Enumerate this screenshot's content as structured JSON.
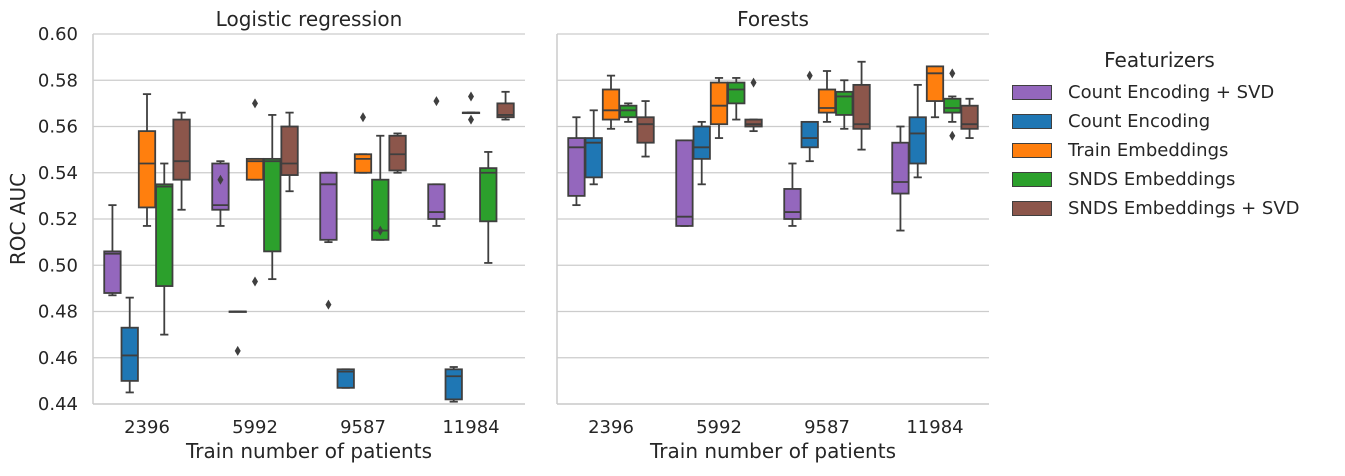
{
  "chart_data": {
    "type": "box",
    "ylabel": "ROC AUC",
    "ylim": [
      0.44,
      0.6
    ],
    "yticks": [
      "0.44",
      "0.46",
      "0.48",
      "0.50",
      "0.52",
      "0.54",
      "0.56",
      "0.58",
      "0.60"
    ],
    "grid": true,
    "xlabel": "Train number of patients",
    "categories": [
      "2396",
      "5992",
      "9587",
      "11984"
    ],
    "legend": {
      "title": "Featurizers",
      "placement": "right",
      "items": [
        {
          "name": "Count Encoding + SVD",
          "color": "#9467bd"
        },
        {
          "name": "Count Encoding",
          "color": "#1f77b4"
        },
        {
          "name": "Train Embeddings",
          "color": "#ff7f0e"
        },
        {
          "name": "SNDS Embeddings",
          "color": "#2ca02c"
        },
        {
          "name": "SNDS Embeddings + SVD",
          "color": "#8c564b"
        }
      ]
    },
    "panels": [
      {
        "title": "Logistic regression",
        "series": [
          {
            "name": "Count Encoding + SVD",
            "boxes": [
              {
                "min": 0.487,
                "q1": 0.488,
                "median": 0.505,
                "q3": 0.506,
                "max": 0.526,
                "outliers": []
              },
              {
                "min": 0.517,
                "q1": 0.524,
                "median": 0.526,
                "q3": 0.544,
                "max": 0.545,
                "outliers": [
                  0.537
                ]
              },
              {
                "min": 0.51,
                "q1": 0.511,
                "median": 0.535,
                "q3": 0.54,
                "max": 0.54,
                "outliers": [
                  0.483
                ]
              },
              {
                "min": 0.517,
                "q1": 0.52,
                "median": 0.523,
                "q3": 0.535,
                "max": 0.535,
                "outliers": [
                  0.571
                ]
              }
            ]
          },
          {
            "name": "Count Encoding",
            "boxes": [
              {
                "min": 0.445,
                "q1": 0.45,
                "median": 0.461,
                "q3": 0.473,
                "max": 0.486,
                "outliers": []
              },
              {
                "min": 0.48,
                "q1": 0.48,
                "median": 0.48,
                "q3": 0.48,
                "max": 0.48,
                "outliers": [
                  0.463
                ]
              },
              {
                "min": 0.447,
                "q1": 0.447,
                "median": 0.454,
                "q3": 0.455,
                "max": 0.455,
                "outliers": []
              },
              {
                "min": 0.441,
                "q1": 0.442,
                "median": 0.452,
                "q3": 0.455,
                "max": 0.456,
                "outliers": []
              }
            ]
          },
          {
            "name": "Train Embeddings",
            "boxes": [
              {
                "min": 0.517,
                "q1": 0.525,
                "median": 0.544,
                "q3": 0.558,
                "max": 0.574,
                "outliers": []
              },
              {
                "min": 0.537,
                "q1": 0.537,
                "median": 0.545,
                "q3": 0.546,
                "max": 0.546,
                "outliers": [
                  0.57,
                  0.493
                ]
              },
              {
                "min": 0.54,
                "q1": 0.54,
                "median": 0.546,
                "q3": 0.548,
                "max": 0.548,
                "outliers": [
                  0.564
                ]
              },
              {
                "min": 0.566,
                "q1": 0.566,
                "median": 0.566,
                "q3": 0.566,
                "max": 0.566,
                "outliers": [
                  0.573,
                  0.563
                ]
              }
            ]
          },
          {
            "name": "SNDS Embeddings",
            "boxes": [
              {
                "min": 0.47,
                "q1": 0.491,
                "median": 0.534,
                "q3": 0.535,
                "max": 0.544,
                "outliers": []
              },
              {
                "min": 0.494,
                "q1": 0.506,
                "median": 0.545,
                "q3": 0.546,
                "max": 0.565,
                "outliers": []
              },
              {
                "min": 0.511,
                "q1": 0.511,
                "median": 0.515,
                "q3": 0.537,
                "max": 0.556,
                "outliers": [
                  0.515
                ]
              },
              {
                "min": 0.501,
                "q1": 0.519,
                "median": 0.54,
                "q3": 0.542,
                "max": 0.549,
                "outliers": []
              }
            ]
          },
          {
            "name": "SNDS Embeddings + SVD",
            "boxes": [
              {
                "min": 0.524,
                "q1": 0.537,
                "median": 0.545,
                "q3": 0.563,
                "max": 0.566,
                "outliers": []
              },
              {
                "min": 0.532,
                "q1": 0.539,
                "median": 0.544,
                "q3": 0.56,
                "max": 0.566,
                "outliers": []
              },
              {
                "min": 0.54,
                "q1": 0.541,
                "median": 0.548,
                "q3": 0.556,
                "max": 0.557,
                "outliers": []
              },
              {
                "min": 0.563,
                "q1": 0.564,
                "median": 0.565,
                "q3": 0.57,
                "max": 0.575,
                "outliers": []
              }
            ]
          }
        ]
      },
      {
        "title": "Forests",
        "series": [
          {
            "name": "Count Encoding + SVD",
            "boxes": [
              {
                "min": 0.526,
                "q1": 0.53,
                "median": 0.551,
                "q3": 0.555,
                "max": 0.564,
                "outliers": []
              },
              {
                "min": 0.517,
                "q1": 0.517,
                "median": 0.521,
                "q3": 0.554,
                "max": 0.554,
                "outliers": []
              },
              {
                "min": 0.517,
                "q1": 0.52,
                "median": 0.523,
                "q3": 0.533,
                "max": 0.544,
                "outliers": []
              },
              {
                "min": 0.515,
                "q1": 0.531,
                "median": 0.536,
                "q3": 0.553,
                "max": 0.56,
                "outliers": []
              }
            ]
          },
          {
            "name": "Count Encoding",
            "boxes": [
              {
                "min": 0.535,
                "q1": 0.538,
                "median": 0.553,
                "q3": 0.555,
                "max": 0.567,
                "outliers": []
              },
              {
                "min": 0.535,
                "q1": 0.546,
                "median": 0.551,
                "q3": 0.56,
                "max": 0.562,
                "outliers": []
              },
              {
                "min": 0.545,
                "q1": 0.551,
                "median": 0.555,
                "q3": 0.562,
                "max": 0.562,
                "outliers": [
                  0.582
                ]
              },
              {
                "min": 0.538,
                "q1": 0.544,
                "median": 0.557,
                "q3": 0.564,
                "max": 0.578,
                "outliers": []
              }
            ]
          },
          {
            "name": "Train Embeddings",
            "boxes": [
              {
                "min": 0.559,
                "q1": 0.563,
                "median": 0.567,
                "q3": 0.576,
                "max": 0.582,
                "outliers": []
              },
              {
                "min": 0.555,
                "q1": 0.561,
                "median": 0.569,
                "q3": 0.579,
                "max": 0.581,
                "outliers": []
              },
              {
                "min": 0.562,
                "q1": 0.566,
                "median": 0.568,
                "q3": 0.576,
                "max": 0.584,
                "outliers": []
              },
              {
                "min": 0.564,
                "q1": 0.571,
                "median": 0.583,
                "q3": 0.586,
                "max": 0.586,
                "outliers": []
              }
            ]
          },
          {
            "name": "SNDS Embeddings",
            "boxes": [
              {
                "min": 0.562,
                "q1": 0.564,
                "median": 0.567,
                "q3": 0.569,
                "max": 0.57,
                "outliers": []
              },
              {
                "min": 0.563,
                "q1": 0.57,
                "median": 0.576,
                "q3": 0.579,
                "max": 0.581,
                "outliers": []
              },
              {
                "min": 0.559,
                "q1": 0.565,
                "median": 0.573,
                "q3": 0.575,
                "max": 0.58,
                "outliers": []
              },
              {
                "min": 0.562,
                "q1": 0.566,
                "median": 0.568,
                "q3": 0.572,
                "max": 0.573,
                "outliers": [
                  0.583,
                  0.556
                ]
              }
            ]
          },
          {
            "name": "SNDS Embeddings + SVD",
            "boxes": [
              {
                "min": 0.547,
                "q1": 0.553,
                "median": 0.561,
                "q3": 0.564,
                "max": 0.571,
                "outliers": []
              },
              {
                "min": 0.558,
                "q1": 0.56,
                "median": 0.561,
                "q3": 0.563,
                "max": 0.563,
                "outliers": [
                  0.579
                ]
              },
              {
                "min": 0.55,
                "q1": 0.559,
                "median": 0.561,
                "q3": 0.578,
                "max": 0.588,
                "outliers": []
              },
              {
                "min": 0.555,
                "q1": 0.559,
                "median": 0.561,
                "q3": 0.569,
                "max": 0.572,
                "outliers": []
              }
            ]
          }
        ]
      }
    ]
  }
}
